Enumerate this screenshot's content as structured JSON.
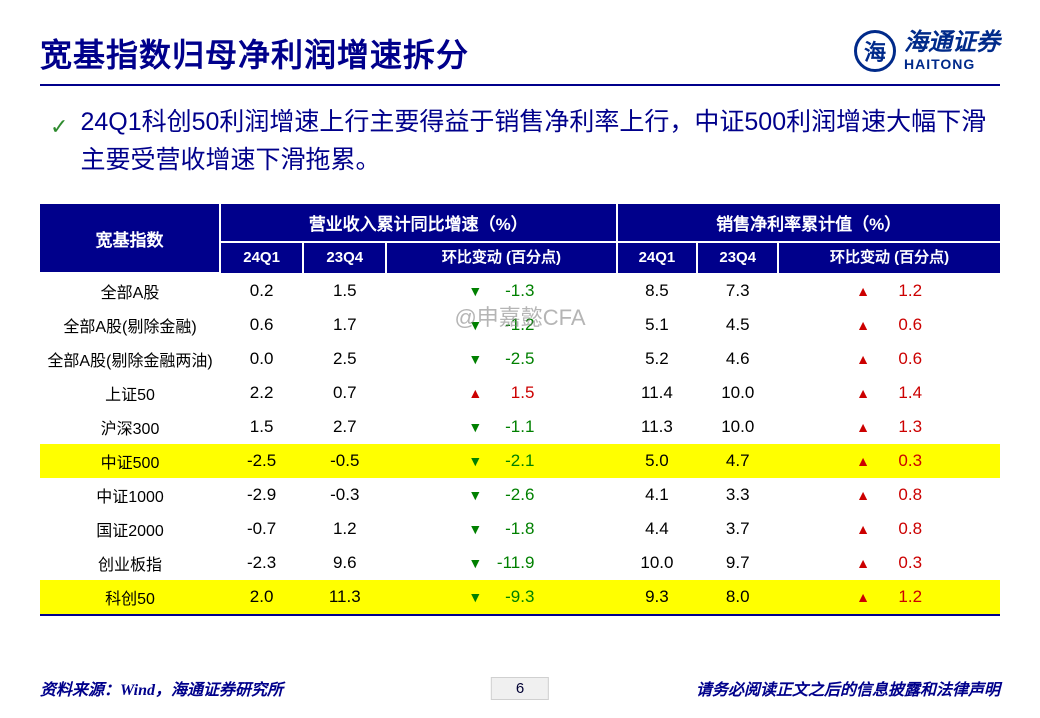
{
  "header": {
    "title": "宽基指数归母净利润增速拆分",
    "logo_cn": "海通证券",
    "logo_en": "HAITONG"
  },
  "bullet": "24Q1科创50利润增速上行主要得益于销售净利率上行，中证500利润增速大幅下滑主要受营收增速下滑拖累。",
  "watermark": "@申嘉懿CFA",
  "table": {
    "col_index": "宽基指数",
    "group1": "营业收入累计同比增速（%）",
    "group2": "销售净利率累计值（%）",
    "sub_24q1": "24Q1",
    "sub_23q4": "23Q4",
    "sub_change": "环比变动\n(百分点)",
    "rows": [
      {
        "name": "全部A股",
        "hl": false,
        "r24": "0.2",
        "r23": "1.5",
        "rd": "down",
        "rv": "-1.3",
        "n24": "8.5",
        "n23": "7.3",
        "nd": "up",
        "nv": "1.2"
      },
      {
        "name": "全部A股(剔除金融)",
        "hl": false,
        "r24": "0.6",
        "r23": "1.7",
        "rd": "down",
        "rv": "-1.2",
        "n24": "5.1",
        "n23": "4.5",
        "nd": "up",
        "nv": "0.6"
      },
      {
        "name": "全部A股(剔除金融两油)",
        "hl": false,
        "r24": "0.0",
        "r23": "2.5",
        "rd": "down",
        "rv": "-2.5",
        "n24": "5.2",
        "n23": "4.6",
        "nd": "up",
        "nv": "0.6"
      },
      {
        "name": "上证50",
        "hl": false,
        "r24": "2.2",
        "r23": "0.7",
        "rd": "up",
        "rv": "1.5",
        "n24": "11.4",
        "n23": "10.0",
        "nd": "up",
        "nv": "1.4"
      },
      {
        "name": "沪深300",
        "hl": false,
        "r24": "1.5",
        "r23": "2.7",
        "rd": "down",
        "rv": "-1.1",
        "n24": "11.3",
        "n23": "10.0",
        "nd": "up",
        "nv": "1.3"
      },
      {
        "name": "中证500",
        "hl": true,
        "r24": "-2.5",
        "r23": "-0.5",
        "rd": "down",
        "rv": "-2.1",
        "n24": "5.0",
        "n23": "4.7",
        "nd": "up",
        "nv": "0.3"
      },
      {
        "name": "中证1000",
        "hl": false,
        "r24": "-2.9",
        "r23": "-0.3",
        "rd": "down",
        "rv": "-2.6",
        "n24": "4.1",
        "n23": "3.3",
        "nd": "up",
        "nv": "0.8"
      },
      {
        "name": "国证2000",
        "hl": false,
        "r24": "-0.7",
        "r23": "1.2",
        "rd": "down",
        "rv": "-1.8",
        "n24": "4.4",
        "n23": "3.7",
        "nd": "up",
        "nv": "0.8"
      },
      {
        "name": "创业板指",
        "hl": false,
        "r24": "-2.3",
        "r23": "9.6",
        "rd": "down",
        "rv": "-11.9",
        "n24": "10.0",
        "n23": "9.7",
        "nd": "up",
        "nv": "0.3"
      },
      {
        "name": "科创50",
        "hl": true,
        "r24": "2.0",
        "r23": "11.3",
        "rd": "down",
        "rv": "-9.3",
        "n24": "9.3",
        "n23": "8.0",
        "nd": "up",
        "nv": "1.2"
      }
    ]
  },
  "footer": {
    "source": "资料来源：Wind，海通证券研究所",
    "page": "6",
    "disclaimer": "请务必阅读正文之后的信息披露和法律声明"
  },
  "arrows": {
    "up": "▲",
    "down": "▼"
  }
}
